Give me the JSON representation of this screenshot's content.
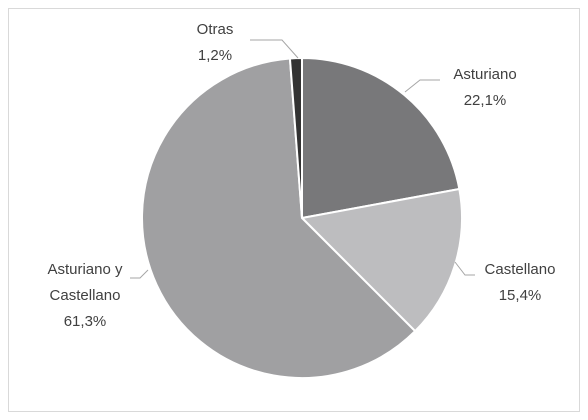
{
  "chart_data": {
    "type": "pie",
    "categories": [
      "Asturiano",
      "Castellano",
      "Asturiano y Castellano",
      "Otras"
    ],
    "values": [
      22.1,
      15.4,
      61.3,
      1.2
    ],
    "value_labels": [
      "22,1%",
      "15,4%",
      "61,3%",
      "1,2%"
    ],
    "colors": [
      "#78787a",
      "#bdbdbf",
      "#a0a0a2",
      "#333333"
    ]
  }
}
